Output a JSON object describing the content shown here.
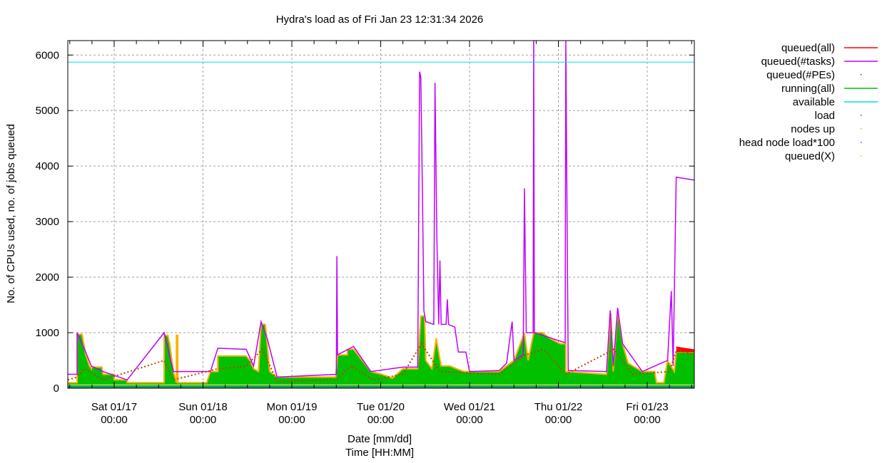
{
  "chart_data": {
    "type": "area",
    "title": "Hydra's load as of Fri Jan 23 12:31:34 2026",
    "xlabel": [
      "Date [mm/dd]",
      "Time [HH:MM]"
    ],
    "ylabel": "No. of CPUs used, no. of jobs queued",
    "ylim": [
      0,
      6260
    ],
    "xlim": [
      "01/16 11:30",
      "01/23 12:45"
    ],
    "grid": true,
    "legend_position": "outside-right",
    "y_ticks": [
      "0",
      "1000",
      "2000",
      "3000",
      "4000",
      "5000",
      "6000"
    ],
    "x_ticks": [
      {
        "date": "Sat 01/17",
        "time": "00:00",
        "at": "01/17 00:00"
      },
      {
        "date": "Sun 01/18",
        "time": "00:00",
        "at": "01/18 00:00"
      },
      {
        "date": "Mon 01/19",
        "time": "00:00",
        "at": "01/19 00:00"
      },
      {
        "date": "Tue 01/20",
        "time": "00:00",
        "at": "01/20 00:00"
      },
      {
        "date": "Wed 01/21",
        "time": "00:00",
        "at": "01/21 00:00"
      },
      {
        "date": "Thu 01/22",
        "time": "00:00",
        "at": "01/22 00:00"
      },
      {
        "date": "Fri 01/23",
        "time": "00:00",
        "at": "01/23 00:00"
      }
    ],
    "legend": [
      {
        "name": "queued(all)",
        "color": "#ff0000",
        "style": "line"
      },
      {
        "name": "queued(#tasks)",
        "color": "#c000ff",
        "style": "line"
      },
      {
        "name": "queued(#PEs)",
        "color": "#a000d0",
        "style": "dot"
      },
      {
        "name": "running(all)",
        "color": "#00c000",
        "style": "line"
      },
      {
        "name": "available",
        "color": "#00e0e0",
        "style": "line"
      },
      {
        "name": "load",
        "color": "#c04000",
        "style": "dot"
      },
      {
        "name": "nodes up",
        "color": "#c0c000",
        "style": "dot"
      },
      {
        "name": "head node load*100",
        "color": "#4060ff",
        "style": "dot"
      },
      {
        "name": "queued(X)",
        "color": "#ffb000",
        "style": "dot"
      }
    ],
    "available": 5872,
    "nodes_up": 60,
    "series": {
      "running(all)": [
        [
          "01/16 11:30",
          100
        ],
        [
          "01/16 14:00",
          100
        ],
        [
          "01/16 14:00",
          970
        ],
        [
          "01/16 15:20",
          970
        ],
        [
          "01/16 16:20",
          600
        ],
        [
          "01/16 17:20",
          400
        ],
        [
          "01/16 17:50",
          350
        ],
        [
          "01/16 17:50",
          380
        ],
        [
          "01/16 20:40",
          380
        ],
        [
          "01/16 21:00",
          250
        ],
        [
          "01/17 00:00",
          250
        ],
        [
          "01/17 00:00",
          150
        ],
        [
          "01/17 03:30",
          150
        ],
        [
          "01/17 03:30",
          100
        ],
        [
          "01/17 13:30",
          100
        ],
        [
          "01/17 13:30",
          950
        ],
        [
          "01/17 14:30",
          950
        ],
        [
          "01/17 15:00",
          800
        ],
        [
          "01/17 16:00",
          300
        ],
        [
          "01/17 16:50",
          100
        ],
        [
          "01/17 16:50",
          950
        ],
        [
          "01/17 17:10",
          950
        ],
        [
          "01/17 17:10",
          100
        ],
        [
          "01/18 01:00",
          100
        ],
        [
          "01/18 02:00",
          300
        ],
        [
          "01/18 04:00",
          300
        ],
        [
          "01/18 04:00",
          580
        ],
        [
          "01/18 11:40",
          580
        ],
        [
          "01/18 12:40",
          500
        ],
        [
          "01/18 13:40",
          350
        ],
        [
          "01/18 15:00",
          300
        ],
        [
          "01/18 15:40",
          1150
        ],
        [
          "01/18 16:50",
          1150
        ],
        [
          "01/18 17:20",
          800
        ],
        [
          "01/18 18:00",
          300
        ],
        [
          "01/18 20:00",
          200
        ],
        [
          "01/19 11:50",
          200
        ],
        [
          "01/19 12:20",
          600
        ],
        [
          "01/19 15:00",
          600
        ],
        [
          "01/19 15:00",
          700
        ],
        [
          "01/19 16:40",
          700
        ],
        [
          "01/19 21:20",
          300
        ],
        [
          "01/20 00:20",
          250
        ],
        [
          "01/20 03:10",
          180
        ],
        [
          "01/20 06:00",
          350
        ],
        [
          "01/20 10:00",
          350
        ],
        [
          "01/20 10:50",
          1300
        ],
        [
          "01/20 11:50",
          1300
        ],
        [
          "01/20 12:10",
          500
        ],
        [
          "01/20 13:50",
          350
        ],
        [
          "01/20 15:00",
          900
        ],
        [
          "01/20 16:20",
          400
        ],
        [
          "01/20 18:40",
          400
        ],
        [
          "01/20 20:30",
          350
        ],
        [
          "01/20 22:30",
          300
        ],
        [
          "01/21 08:00",
          300
        ],
        [
          "01/21 10:00",
          400
        ],
        [
          "01/21 12:00",
          500
        ],
        [
          "01/21 14:50",
          1000
        ],
        [
          "01/21 15:50",
          500
        ],
        [
          "01/21 17:20",
          1000
        ],
        [
          "01/21 19:40",
          1000
        ],
        [
          "01/21 21:40",
          900
        ],
        [
          "01/22 00:30",
          800
        ],
        [
          "01/22 02:00",
          800
        ],
        [
          "01/22 02:00",
          300
        ],
        [
          "01/22 13:00",
          250
        ],
        [
          "01/22 14:10",
          1350
        ],
        [
          "01/22 14:50",
          300
        ],
        [
          "01/22 16:00",
          1400
        ],
        [
          "01/22 17:20",
          800
        ],
        [
          "01/22 18:50",
          450
        ],
        [
          "01/22 22:40",
          300
        ],
        [
          "01/23 02:00",
          300
        ],
        [
          "01/23 02:30",
          100
        ],
        [
          "01/23 04:30",
          100
        ],
        [
          "01/23 05:30",
          500
        ],
        [
          "01/23 07:20",
          300
        ],
        [
          "01/23 07:50",
          650
        ],
        [
          "01/23 12:40",
          650
        ]
      ],
      "queued(#tasks)": [
        [
          "01/16 11:30",
          250
        ],
        [
          "01/16 14:00",
          250
        ],
        [
          "01/16 14:00",
          1000
        ],
        [
          "01/16 16:00",
          700
        ],
        [
          "01/16 17:50",
          400
        ],
        [
          "01/16 21:00",
          300
        ],
        [
          "01/17 03:30",
          150
        ],
        [
          "01/17 13:30",
          1000
        ],
        [
          "01/17 16:00",
          300
        ],
        [
          "01/18 02:00",
          300
        ],
        [
          "01/18 04:00",
          720
        ],
        [
          "01/18 11:40",
          700
        ],
        [
          "01/18 13:40",
          400
        ],
        [
          "01/18 15:40",
          1200
        ],
        [
          "01/18 17:20",
          900
        ],
        [
          "01/18 20:00",
          200
        ],
        [
          "01/19 12:00",
          250
        ],
        [
          "01/19 12:10",
          2380
        ],
        [
          "01/19 12:20",
          600
        ],
        [
          "01/19 16:40",
          750
        ],
        [
          "01/19 21:20",
          300
        ],
        [
          "01/20 06:00",
          380
        ],
        [
          "01/20 10:00",
          380
        ],
        [
          "01/20 10:30",
          5700
        ],
        [
          "01/20 10:50",
          5600
        ],
        [
          "01/20 11:20",
          3200
        ],
        [
          "01/20 11:40",
          1400
        ],
        [
          "01/20 12:10",
          1200
        ],
        [
          "01/20 14:20",
          1150
        ],
        [
          "01/20 14:40",
          5500
        ],
        [
          "01/20 15:10",
          2700
        ],
        [
          "01/20 15:40",
          1150
        ],
        [
          "01/20 16:00",
          2300
        ],
        [
          "01/20 16:20",
          1150
        ],
        [
          "01/20 17:40",
          1150
        ],
        [
          "01/20 18:00",
          1600
        ],
        [
          "01/20 18:20",
          1150
        ],
        [
          "01/20 20:00",
          1100
        ],
        [
          "01/20 21:00",
          650
        ],
        [
          "01/20 23:00",
          650
        ],
        [
          "01/21 00:00",
          300
        ],
        [
          "01/21 08:00",
          320
        ],
        [
          "01/21 10:00",
          450
        ],
        [
          "01/21 11:30",
          1200
        ],
        [
          "01/21 12:00",
          500
        ],
        [
          "01/21 14:30",
          600
        ],
        [
          "01/21 14:50",
          3600
        ],
        [
          "01/21 15:20",
          1000
        ],
        [
          "01/21 17:10",
          1000
        ],
        [
          "01/21 17:20",
          6260
        ],
        [
          "01/21 17:30",
          1000
        ],
        [
          "01/22 01:50",
          820
        ],
        [
          "01/22 02:00",
          6260
        ],
        [
          "01/22 02:20",
          3200
        ],
        [
          "01/22 02:40",
          320
        ],
        [
          "01/22 13:00",
          300
        ],
        [
          "01/22 14:00",
          1400
        ],
        [
          "01/22 14:50",
          400
        ],
        [
          "01/22 16:00",
          1450
        ],
        [
          "01/22 17:20",
          800
        ],
        [
          "01/22 22:40",
          300
        ],
        [
          "01/23 05:30",
          500
        ],
        [
          "01/23 06:30",
          1750
        ],
        [
          "01/23 07:00",
          400
        ],
        [
          "01/23 07:50",
          3800
        ],
        [
          "01/23 12:40",
          3750
        ]
      ],
      "queued(all)": [
        [
          "01/23 07:50",
          750
        ],
        [
          "01/23 12:40",
          700
        ]
      ],
      "load": [
        [
          "01/16 11:30",
          150
        ],
        [
          "01/16 14:00",
          200
        ],
        [
          "01/16 16:00",
          350
        ],
        [
          "01/16 21:00",
          150
        ],
        [
          "01/17 13:30",
          500
        ],
        [
          "01/17 16:00",
          150
        ],
        [
          "01/18 04:00",
          350
        ],
        [
          "01/18 11:40",
          400
        ],
        [
          "01/18 16:00",
          700
        ],
        [
          "01/18 20:00",
          120
        ],
        [
          "01/19 12:00",
          150
        ],
        [
          "01/19 16:00",
          400
        ],
        [
          "01/19 22:00",
          150
        ],
        [
          "01/20 06:00",
          250
        ],
        [
          "01/20 11:00",
          800
        ],
        [
          "01/20 16:00",
          300
        ],
        [
          "01/21 08:00",
          250
        ],
        [
          "01/21 15:00",
          600
        ],
        [
          "01/21 20:00",
          700
        ],
        [
          "01/22 02:00",
          250
        ],
        [
          "01/22 15:00",
          700
        ],
        [
          "01/22 20:00",
          250
        ],
        [
          "01/23 06:00",
          300
        ],
        [
          "01/23 08:00",
          700
        ],
        [
          "01/23 12:40",
          600
        ]
      ],
      "head node load*100": [
        [
          "01/16 11:30",
          30
        ],
        [
          "01/23 12:40",
          30
        ]
      ]
    }
  }
}
